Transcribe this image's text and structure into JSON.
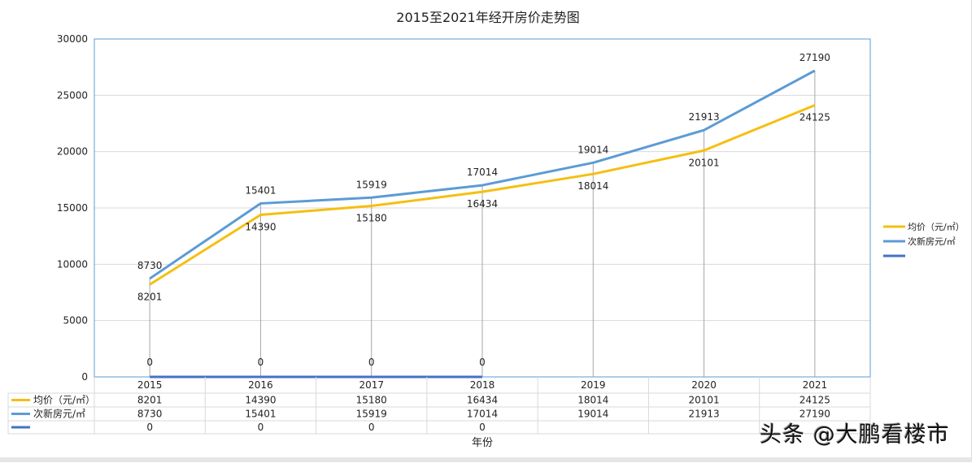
{
  "chart_data": {
    "type": "line",
    "title": "2015至2021年经开房价走势图",
    "xlabel": "年份",
    "ylabel": "",
    "ylim": [
      0,
      30000
    ],
    "yticks": [
      0,
      5000,
      10000,
      15000,
      20000,
      25000,
      30000
    ],
    "categories": [
      "2015",
      "2016",
      "2017",
      "2018",
      "2019",
      "2020",
      "2021"
    ],
    "grid": true,
    "legend": "right",
    "data_table": true,
    "series": [
      {
        "name": "均价（元/㎡）",
        "color": "#f5bf12",
        "values": [
          8201,
          14390,
          15180,
          16434,
          18014,
          20101,
          24125
        ]
      },
      {
        "name": "次新房元/㎡",
        "color": "#5b9bd5",
        "values": [
          8730,
          15401,
          15919,
          17014,
          19014,
          21913,
          27190
        ]
      },
      {
        "name": "",
        "color": "#4472c4",
        "values": [
          0,
          0,
          0,
          0,
          null,
          null,
          null
        ]
      }
    ]
  },
  "watermark": "头条 @大鹏看楼市"
}
